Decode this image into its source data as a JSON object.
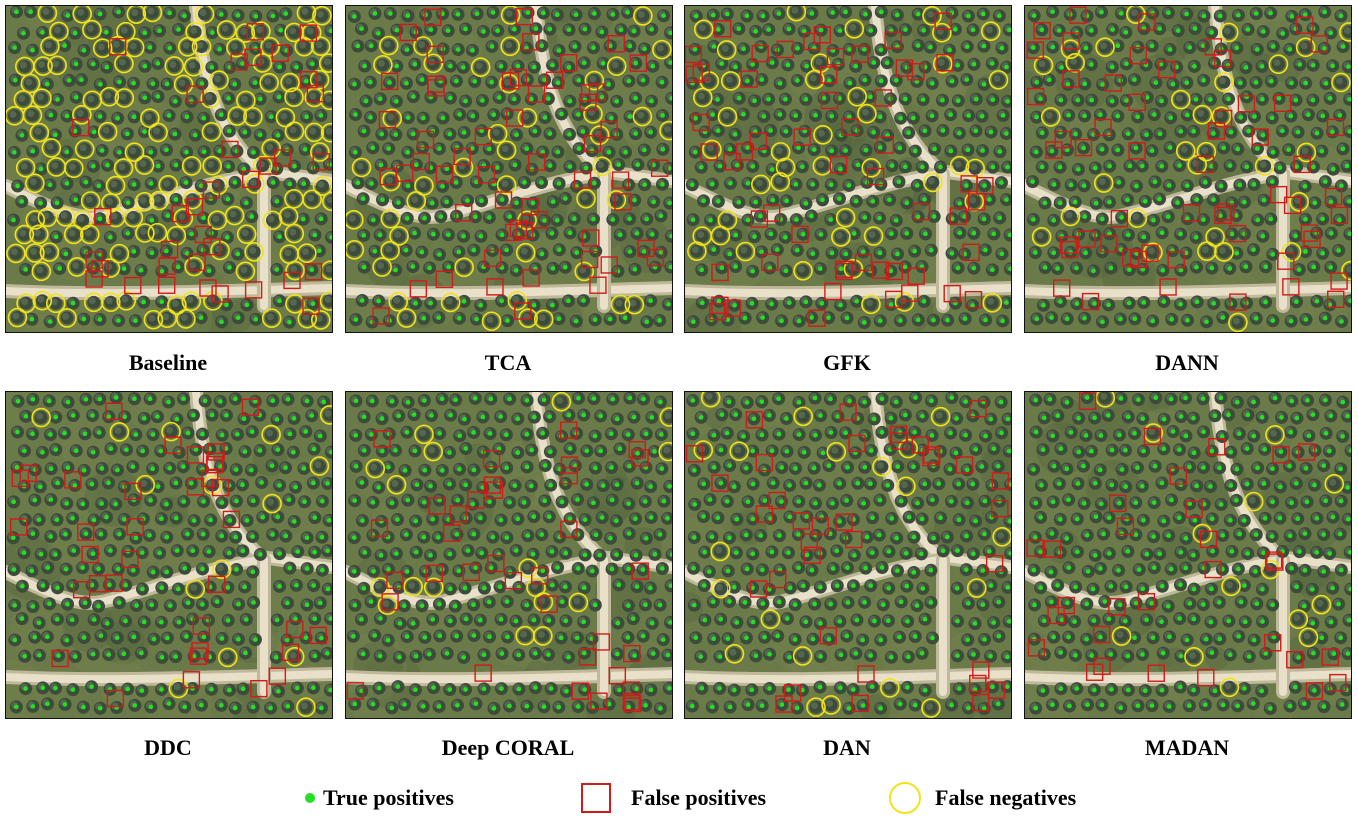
{
  "panels": [
    {
      "name": "Baseline",
      "variant": 0
    },
    {
      "name": "TCA",
      "variant": 1
    },
    {
      "name": "GFK",
      "variant": 2
    },
    {
      "name": "DANN",
      "variant": 3
    },
    {
      "name": "DDC",
      "variant": 4
    },
    {
      "name": "Deep CORAL",
      "variant": 5
    },
    {
      "name": "DAN",
      "variant": 6
    },
    {
      "name": "MADAN",
      "variant": 7
    }
  ],
  "legend": {
    "true_positives": "True positives",
    "false_positives": "False positives",
    "false_negatives": "False negatives"
  },
  "colors": {
    "true_positive": "#22e022",
    "false_positive": "#d11a1a",
    "false_negative": "#f2e21a",
    "canopy": "#3c4b3a",
    "ground": "#6a7a48",
    "road": "#e8e0c8"
  }
}
